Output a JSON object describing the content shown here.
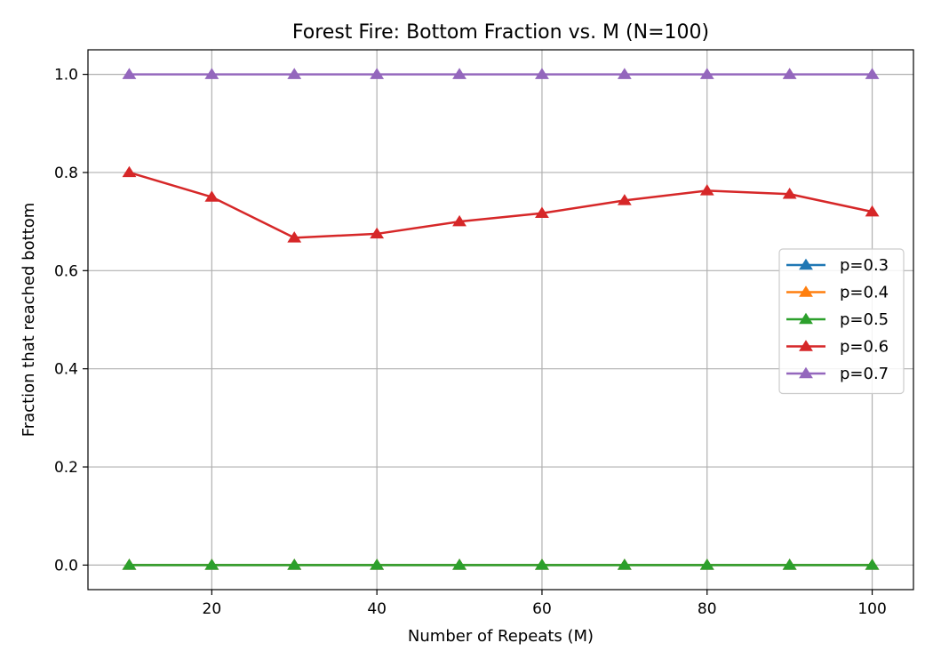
{
  "chart_data": {
    "type": "line",
    "title": "Forest Fire: Bottom Fraction vs. M (N=100)",
    "xlabel": "Number of Repeats (M)",
    "ylabel": "Fraction that reached bottom",
    "x": [
      10,
      20,
      30,
      40,
      50,
      60,
      70,
      80,
      90,
      100
    ],
    "xlim": [
      5,
      105
    ],
    "ylim": [
      -0.05,
      1.05
    ],
    "xticks": [
      20,
      40,
      60,
      80,
      100
    ],
    "yticks": [
      0.0,
      0.2,
      0.4,
      0.6,
      0.8,
      1.0
    ],
    "xtick_labels": [
      "20",
      "40",
      "60",
      "80",
      "100"
    ],
    "ytick_labels": [
      "0.0",
      "0.2",
      "0.4",
      "0.6",
      "0.8",
      "1.0"
    ],
    "grid": true,
    "marker": "triangle",
    "legend_position": "center-right",
    "series": [
      {
        "name": "p=0.3",
        "color": "#1f77b4",
        "values": [
          0,
          0,
          0,
          0,
          0,
          0,
          0,
          0,
          0,
          0
        ]
      },
      {
        "name": "p=0.4",
        "color": "#ff7f0e",
        "values": [
          0,
          0,
          0,
          0,
          0,
          0,
          0,
          0,
          0,
          0
        ]
      },
      {
        "name": "p=0.5",
        "color": "#2ca02c",
        "values": [
          0,
          0,
          0,
          0,
          0,
          0,
          0,
          0,
          0,
          0
        ]
      },
      {
        "name": "p=0.6",
        "color": "#d62728",
        "values": [
          0.8,
          0.75,
          0.667,
          0.675,
          0.7,
          0.717,
          0.743,
          0.763,
          0.756,
          0.72
        ]
      },
      {
        "name": "p=0.7",
        "color": "#9467bd",
        "values": [
          1,
          1,
          1,
          1,
          1,
          1,
          1,
          1,
          1,
          1
        ]
      }
    ]
  }
}
